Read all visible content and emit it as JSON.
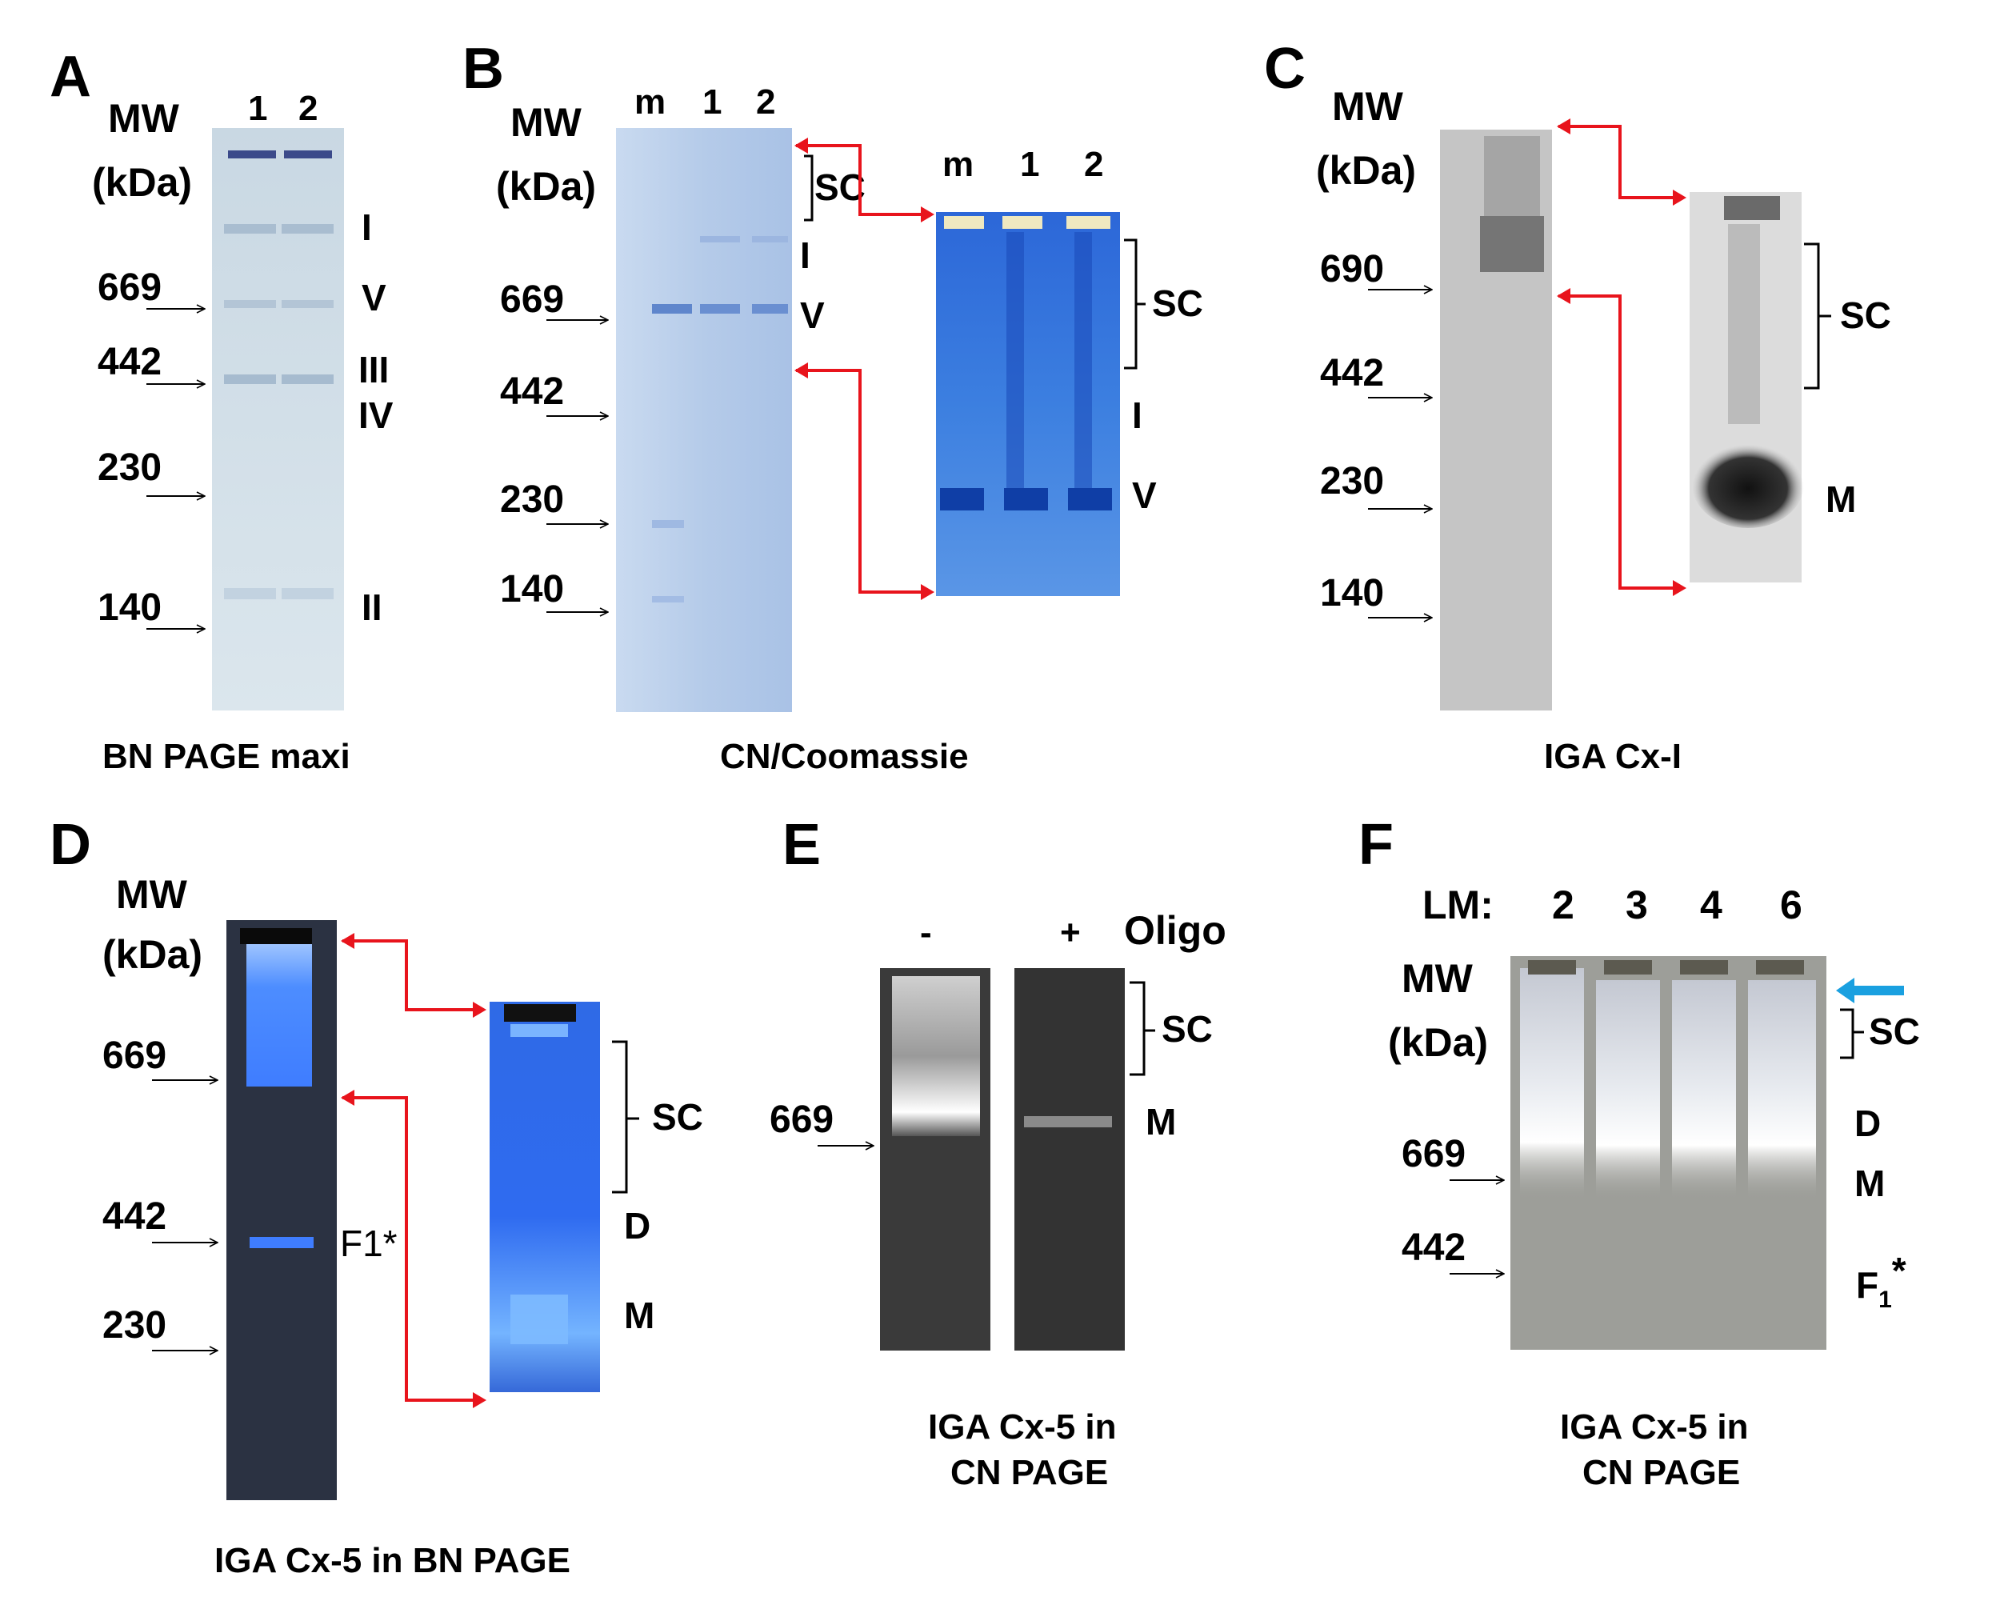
{
  "figure": {
    "colors": {
      "callout_arrow": "#e8141c",
      "sample_arrow": "#1aa0e0",
      "bn_gel_bg": "#cfdde7",
      "cn_coomassie_bg": "#b9cfe6",
      "coomassie_band": "#1f55c8",
      "ingel_dark_bg": "#2b3242",
      "ingel_blue": "#3a7cff",
      "cn_gray_gel": "#3a3a3a",
      "lm_gel": "#9d9e99"
    },
    "panels": {
      "A": {
        "letter": "A",
        "mw_line1": "MW",
        "mw_line2": "(kDa)",
        "lanes": [
          "1",
          "2"
        ],
        "markers": [
          "669",
          "442",
          "230",
          "140"
        ],
        "bands": [
          "I",
          "V",
          "III",
          "IV",
          "II"
        ],
        "caption": "BN PAGE maxi"
      },
      "B": {
        "letter": "B",
        "mw_line1": "MW",
        "mw_line2": "(kDa)",
        "lanes": [
          "m",
          "1",
          "2"
        ],
        "inset_lanes": [
          "m",
          "1",
          "2"
        ],
        "markers": [
          "669",
          "442",
          "230",
          "140"
        ],
        "bands": [
          "SC",
          "I",
          "V"
        ],
        "inset_bands": [
          "SC",
          "I",
          "V"
        ],
        "caption": "CN/Coomassie"
      },
      "C": {
        "letter": "C",
        "mw_line1": "MW",
        "mw_line2": "(kDa)",
        "markers": [
          "690",
          "442",
          "230",
          "140"
        ],
        "inset_bands": [
          "SC",
          "M"
        ],
        "caption": "IGA Cx-I"
      },
      "D": {
        "letter": "D",
        "mw_line1": "MW",
        "mw_line2": "(kDa)",
        "markers": [
          "669",
          "442",
          "230"
        ],
        "gel_label": "F1*",
        "inset_bands": [
          "SC",
          "D",
          "M"
        ],
        "caption": "IGA Cx-5 in BN PAGE"
      },
      "E": {
        "letter": "E",
        "lanes": [
          "-",
          "+"
        ],
        "lane_title": "Oligo",
        "markers": [
          "669"
        ],
        "bands": [
          "SC",
          "M"
        ],
        "caption_line1": "IGA Cx-5 in",
        "caption_line2": "CN PAGE"
      },
      "F": {
        "letter": "F",
        "lm_prefix": "LM:",
        "lanes": [
          "2",
          "3",
          "4",
          "6"
        ],
        "mw_line1": "MW",
        "mw_line2": "(kDa)",
        "markers": [
          "669",
          "442"
        ],
        "bands": [
          "SC",
          "D",
          "M"
        ],
        "band_f1_base": "F",
        "band_f1_sub": "1",
        "band_f1_sup": "*",
        "caption_line1": "IGA Cx-5 in",
        "caption_line2": "CN PAGE"
      }
    }
  }
}
